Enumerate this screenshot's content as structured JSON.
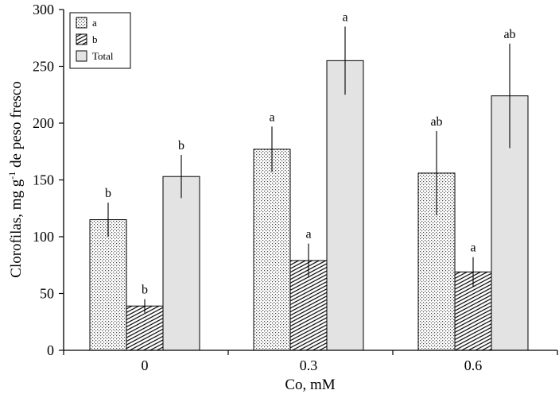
{
  "chart_data": {
    "type": "bar",
    "xlabel": "Co, mM",
    "ylabel": "Clorofilas, mg g",
    "ylabel_sup": "-1",
    "ylabel_tail": " de peso fresco",
    "ylim": [
      0,
      300
    ],
    "yticks": [
      "0",
      "50",
      "100",
      "150",
      "200",
      "250",
      "300"
    ],
    "categories": [
      "0",
      "0.3",
      "0.6"
    ],
    "series": [
      {
        "name": "a",
        "pattern": "dots",
        "values": [
          115,
          177,
          156
        ],
        "errors": [
          15,
          20,
          37
        ],
        "sig": [
          "b",
          "a",
          "ab"
        ]
      },
      {
        "name": "b",
        "pattern": "hatch",
        "values": [
          39,
          79,
          69
        ],
        "errors": [
          6,
          15,
          13
        ],
        "sig": [
          "b",
          "a",
          "a"
        ]
      },
      {
        "name": "Total",
        "pattern": "solid",
        "values": [
          153,
          255,
          224
        ],
        "errors": [
          19,
          30,
          46
        ],
        "sig": [
          "b",
          "a",
          "ab"
        ]
      }
    ],
    "legend_position": "top-left",
    "colors": {
      "solid": "#e3e3e3",
      "ink": "#000000"
    }
  }
}
